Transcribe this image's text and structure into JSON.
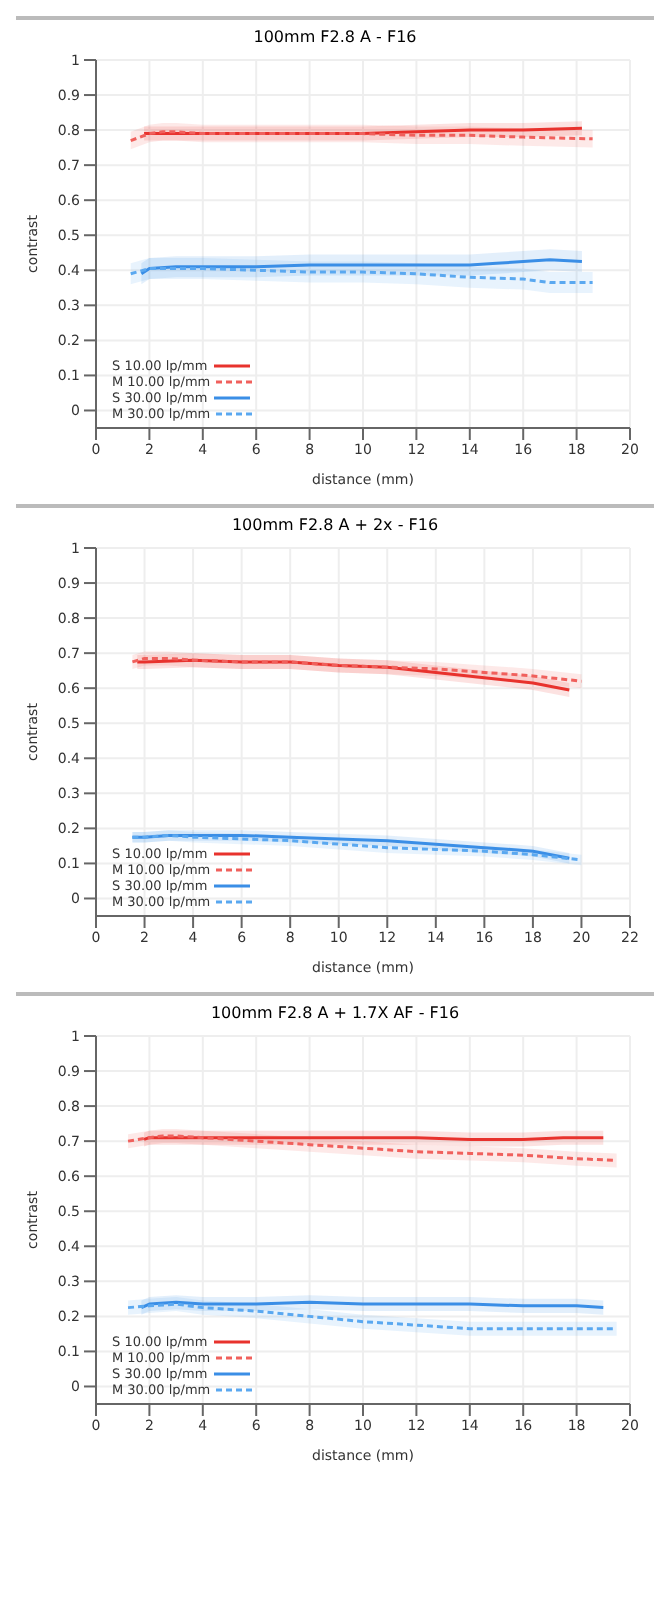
{
  "chart_data": [
    {
      "type": "line",
      "title": "100mm F2.8 A - F16",
      "xlabel": "distance (mm)",
      "ylabel": "contrast",
      "xlim": [
        0,
        20
      ],
      "xticks": [
        0,
        2,
        4,
        6,
        8,
        10,
        12,
        14,
        16,
        18,
        20
      ],
      "ylim": [
        -0.05,
        1
      ],
      "yticks": [
        0,
        0.1,
        0.2,
        0.3,
        0.4,
        0.5,
        0.6,
        0.7,
        0.8,
        0.9,
        1
      ],
      "grid": true,
      "legend": "bottom left",
      "marker": "none",
      "series": [
        {
          "name": "S 10.00 lp/mm",
          "color": "#e8322d",
          "line_style": "solid",
          "x": [
            1.8,
            2,
            4,
            6,
            8,
            10,
            12,
            14,
            16,
            18.2
          ],
          "values": [
            0.79,
            0.79,
            0.79,
            0.79,
            0.79,
            0.79,
            0.795,
            0.8,
            0.8,
            0.805
          ],
          "lower": [
            0.77,
            0.77,
            0.77,
            0.77,
            0.77,
            0.77,
            0.775,
            0.78,
            0.78,
            0.785
          ],
          "upper": [
            0.81,
            0.81,
            0.81,
            0.81,
            0.81,
            0.81,
            0.815,
            0.82,
            0.82,
            0.825
          ]
        },
        {
          "name": "M 10.00 lp/mm",
          "color": "#f0605c",
          "line_style": "dashed",
          "x": [
            1.3,
            2,
            2.5,
            3,
            4,
            6,
            8,
            10,
            12,
            14,
            16,
            18.6
          ],
          "values": [
            0.77,
            0.79,
            0.795,
            0.795,
            0.79,
            0.79,
            0.79,
            0.79,
            0.785,
            0.785,
            0.78,
            0.775
          ],
          "lower": [
            0.745,
            0.765,
            0.77,
            0.77,
            0.765,
            0.765,
            0.765,
            0.765,
            0.76,
            0.76,
            0.755,
            0.75
          ],
          "upper": [
            0.795,
            0.815,
            0.82,
            0.82,
            0.815,
            0.815,
            0.815,
            0.815,
            0.81,
            0.81,
            0.805,
            0.8
          ]
        },
        {
          "name": "S 30.00 lp/mm",
          "color": "#3a8ee6",
          "line_style": "solid",
          "x": [
            1.7,
            2,
            3,
            4,
            6,
            8,
            10,
            12,
            14,
            15,
            17,
            18.2
          ],
          "values": [
            0.39,
            0.405,
            0.41,
            0.41,
            0.41,
            0.415,
            0.415,
            0.415,
            0.415,
            0.42,
            0.43,
            0.425
          ],
          "lower": [
            0.36,
            0.375,
            0.38,
            0.38,
            0.38,
            0.385,
            0.385,
            0.385,
            0.385,
            0.39,
            0.4,
            0.395
          ],
          "upper": [
            0.42,
            0.435,
            0.44,
            0.44,
            0.44,
            0.445,
            0.445,
            0.445,
            0.445,
            0.45,
            0.46,
            0.455
          ]
        },
        {
          "name": "M 30.00 lp/mm",
          "color": "#5aa8f0",
          "line_style": "dashed",
          "x": [
            1.3,
            2,
            4,
            6,
            8,
            10,
            12,
            14,
            16,
            17,
            18.6
          ],
          "values": [
            0.39,
            0.405,
            0.405,
            0.4,
            0.395,
            0.395,
            0.39,
            0.38,
            0.375,
            0.365,
            0.365
          ],
          "lower": [
            0.36,
            0.375,
            0.375,
            0.37,
            0.365,
            0.365,
            0.36,
            0.35,
            0.345,
            0.335,
            0.335
          ],
          "upper": [
            0.42,
            0.435,
            0.435,
            0.43,
            0.425,
            0.425,
            0.42,
            0.41,
            0.405,
            0.395,
            0.395
          ]
        }
      ]
    },
    {
      "type": "line",
      "title": "100mm F2.8 A + 2x - F16",
      "xlabel": "distance (mm)",
      "ylabel": "contrast",
      "xlim": [
        0,
        22
      ],
      "xticks": [
        0,
        2,
        4,
        6,
        8,
        10,
        12,
        14,
        16,
        18,
        20,
        22
      ],
      "ylim": [
        -0.05,
        1
      ],
      "yticks": [
        0,
        0.1,
        0.2,
        0.3,
        0.4,
        0.5,
        0.6,
        0.7,
        0.8,
        0.9,
        1
      ],
      "grid": true,
      "legend": "bottom left",
      "marker": "none",
      "series": [
        {
          "name": "S 10.00 lp/mm",
          "color": "#e8322d",
          "line_style": "solid",
          "x": [
            1.7,
            2,
            4,
            6,
            8,
            10,
            12,
            14,
            16,
            18,
            19.5
          ],
          "values": [
            0.675,
            0.675,
            0.68,
            0.675,
            0.675,
            0.665,
            0.66,
            0.645,
            0.63,
            0.615,
            0.595
          ],
          "lower": [
            0.655,
            0.655,
            0.66,
            0.655,
            0.655,
            0.645,
            0.64,
            0.625,
            0.61,
            0.595,
            0.575
          ],
          "upper": [
            0.695,
            0.695,
            0.7,
            0.695,
            0.695,
            0.685,
            0.68,
            0.665,
            0.65,
            0.635,
            0.615
          ]
        },
        {
          "name": "M 10.00 lp/mm",
          "color": "#f0605c",
          "line_style": "dashed",
          "x": [
            1.5,
            2,
            3,
            4,
            6,
            8,
            10,
            12,
            14,
            16,
            18,
            20
          ],
          "values": [
            0.675,
            0.685,
            0.685,
            0.68,
            0.675,
            0.675,
            0.665,
            0.66,
            0.655,
            0.645,
            0.635,
            0.62
          ],
          "lower": [
            0.655,
            0.665,
            0.665,
            0.66,
            0.655,
            0.655,
            0.645,
            0.64,
            0.635,
            0.625,
            0.615,
            0.6
          ],
          "upper": [
            0.695,
            0.705,
            0.705,
            0.7,
            0.695,
            0.695,
            0.685,
            0.68,
            0.675,
            0.665,
            0.655,
            0.64
          ]
        },
        {
          "name": "S 30.00 lp/mm",
          "color": "#3a8ee6",
          "line_style": "solid",
          "x": [
            1.5,
            2,
            3,
            4,
            6,
            8,
            10,
            12,
            14,
            16,
            18,
            19.5
          ],
          "values": [
            0.175,
            0.175,
            0.18,
            0.18,
            0.18,
            0.175,
            0.17,
            0.165,
            0.155,
            0.145,
            0.135,
            0.115
          ],
          "lower": [
            0.16,
            0.16,
            0.165,
            0.165,
            0.165,
            0.16,
            0.155,
            0.15,
            0.14,
            0.13,
            0.12,
            0.1
          ],
          "upper": [
            0.19,
            0.19,
            0.195,
            0.195,
            0.195,
            0.19,
            0.185,
            0.18,
            0.17,
            0.16,
            0.15,
            0.13
          ]
        },
        {
          "name": "M 30.00 lp/mm",
          "color": "#5aa8f0",
          "line_style": "dashed",
          "x": [
            1.5,
            2,
            3,
            4,
            6,
            8,
            10,
            12,
            14,
            16,
            18,
            20
          ],
          "values": [
            0.175,
            0.175,
            0.18,
            0.175,
            0.17,
            0.165,
            0.155,
            0.145,
            0.14,
            0.135,
            0.125,
            0.11
          ],
          "lower": [
            0.16,
            0.16,
            0.165,
            0.16,
            0.155,
            0.15,
            0.14,
            0.13,
            0.125,
            0.12,
            0.11,
            0.095
          ],
          "upper": [
            0.19,
            0.19,
            0.195,
            0.19,
            0.185,
            0.18,
            0.17,
            0.16,
            0.155,
            0.15,
            0.14,
            0.125
          ]
        }
      ]
    },
    {
      "type": "line",
      "title": "100mm F2.8 A + 1.7X AF - F16",
      "xlabel": "distance (mm)",
      "ylabel": "contrast",
      "xlim": [
        0,
        20
      ],
      "xticks": [
        0,
        2,
        4,
        6,
        8,
        10,
        12,
        14,
        16,
        18,
        20
      ],
      "ylim": [
        -0.05,
        1
      ],
      "yticks": [
        0,
        0.1,
        0.2,
        0.3,
        0.4,
        0.5,
        0.6,
        0.7,
        0.8,
        0.9,
        1
      ],
      "grid": true,
      "legend": "bottom left",
      "marker": "none",
      "series": [
        {
          "name": "S 10.00 lp/mm",
          "color": "#e8322d",
          "line_style": "solid",
          "x": [
            1.8,
            2,
            3,
            4,
            6,
            8,
            10,
            12,
            14,
            16,
            17.5,
            19
          ],
          "values": [
            0.705,
            0.71,
            0.71,
            0.71,
            0.71,
            0.71,
            0.71,
            0.71,
            0.705,
            0.705,
            0.71,
            0.71
          ],
          "lower": [
            0.685,
            0.69,
            0.69,
            0.69,
            0.69,
            0.69,
            0.69,
            0.69,
            0.685,
            0.685,
            0.69,
            0.69
          ],
          "upper": [
            0.725,
            0.73,
            0.73,
            0.73,
            0.73,
            0.73,
            0.73,
            0.73,
            0.725,
            0.725,
            0.73,
            0.73
          ]
        },
        {
          "name": "M 10.00 lp/mm",
          "color": "#f0605c",
          "line_style": "dashed",
          "x": [
            1.2,
            2,
            2.5,
            3,
            4,
            6,
            8,
            10,
            12,
            14,
            16,
            18,
            19.5
          ],
          "values": [
            0.7,
            0.71,
            0.715,
            0.715,
            0.71,
            0.7,
            0.69,
            0.68,
            0.67,
            0.665,
            0.66,
            0.65,
            0.645
          ],
          "lower": [
            0.68,
            0.69,
            0.695,
            0.695,
            0.69,
            0.68,
            0.67,
            0.66,
            0.65,
            0.645,
            0.64,
            0.63,
            0.625
          ],
          "upper": [
            0.72,
            0.73,
            0.735,
            0.735,
            0.73,
            0.72,
            0.71,
            0.7,
            0.69,
            0.685,
            0.68,
            0.67,
            0.665
          ]
        },
        {
          "name": "S 30.00 lp/mm",
          "color": "#3a8ee6",
          "line_style": "solid",
          "x": [
            1.7,
            2,
            3,
            4,
            6,
            8,
            10,
            12,
            14,
            16,
            18,
            19
          ],
          "values": [
            0.225,
            0.235,
            0.24,
            0.235,
            0.235,
            0.24,
            0.235,
            0.235,
            0.235,
            0.23,
            0.23,
            0.225
          ],
          "lower": [
            0.205,
            0.215,
            0.22,
            0.215,
            0.215,
            0.22,
            0.215,
            0.215,
            0.215,
            0.21,
            0.21,
            0.205
          ],
          "upper": [
            0.245,
            0.255,
            0.26,
            0.255,
            0.255,
            0.26,
            0.255,
            0.255,
            0.255,
            0.25,
            0.25,
            0.245
          ]
        },
        {
          "name": "M 30.00 lp/mm",
          "color": "#5aa8f0",
          "line_style": "dashed",
          "x": [
            1.2,
            2,
            3,
            4,
            6,
            8,
            10,
            12,
            14,
            16,
            18,
            19.5
          ],
          "values": [
            0.225,
            0.23,
            0.235,
            0.225,
            0.215,
            0.2,
            0.185,
            0.175,
            0.165,
            0.165,
            0.165,
            0.165
          ],
          "lower": [
            0.205,
            0.21,
            0.215,
            0.205,
            0.195,
            0.18,
            0.165,
            0.155,
            0.145,
            0.145,
            0.145,
            0.145
          ],
          "upper": [
            0.245,
            0.25,
            0.255,
            0.245,
            0.235,
            0.22,
            0.205,
            0.195,
            0.185,
            0.185,
            0.185,
            0.185
          ]
        }
      ]
    }
  ]
}
